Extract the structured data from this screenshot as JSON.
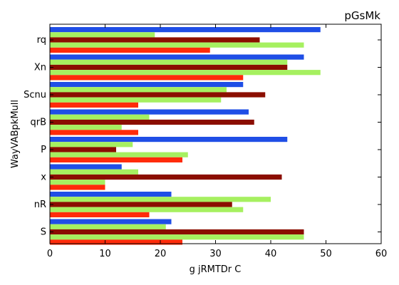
{
  "chart_data": {
    "type": "bar",
    "orientation": "horizontal",
    "title": "pGsMk",
    "xlabel": "g jRMTDr C",
    "ylabel": "WayVABpkMull",
    "xlim": [
      0,
      60
    ],
    "x_ticks": [
      "0",
      "10",
      "20",
      "30",
      "40",
      "50",
      "60"
    ],
    "grid": false,
    "categories": [
      "rq",
      "Xn",
      "Scnu",
      "qrB",
      "P",
      "x",
      "nR",
      "S"
    ],
    "series": [
      {
        "color": "#1f4ee6",
        "values": [
          49,
          46,
          35,
          36,
          43,
          13,
          22,
          22
        ]
      },
      {
        "color": "#a6f060",
        "values": [
          19,
          43,
          32,
          18,
          15,
          16,
          40,
          21
        ]
      },
      {
        "color": "#8b0e00",
        "values": [
          38,
          43,
          39,
          37,
          12,
          42,
          33,
          46
        ]
      },
      {
        "color": "#a6f060",
        "values": [
          46,
          49,
          31,
          13,
          25,
          10,
          35,
          46
        ]
      },
      {
        "color": "#ff2b0a",
        "values": [
          29,
          35,
          16,
          16,
          24,
          10,
          18,
          24
        ]
      }
    ]
  }
}
